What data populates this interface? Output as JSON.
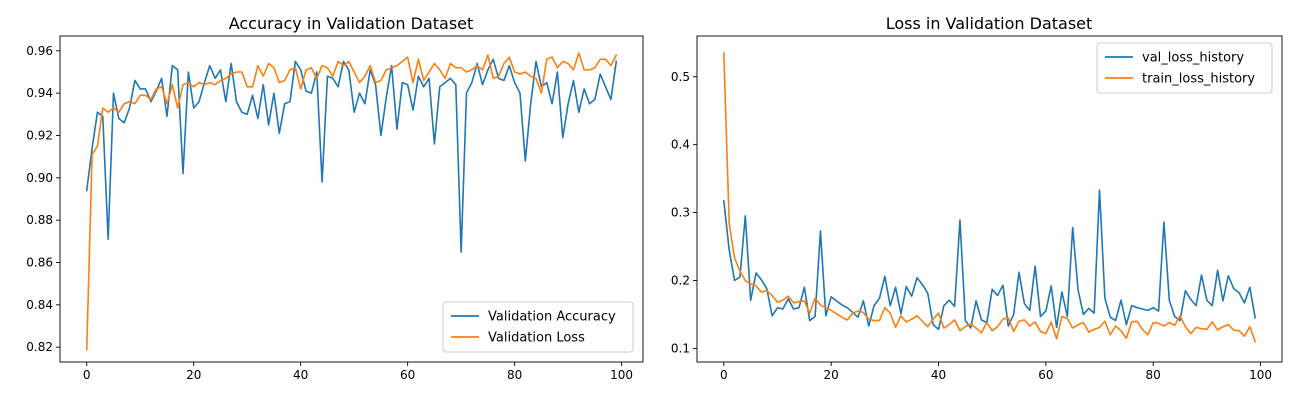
{
  "chart_data": [
    {
      "type": "line",
      "title": "Accuracy in Validation Dataset",
      "xlabel": "",
      "ylabel": "",
      "xlim": [
        -5,
        104
      ],
      "ylim": [
        0.813,
        0.967
      ],
      "xticks": [
        0,
        20,
        40,
        60,
        80,
        100
      ],
      "yticks": [
        0.82,
        0.84,
        0.86,
        0.88,
        0.9,
        0.92,
        0.94,
        0.96
      ],
      "ytick_labels": [
        "0.82",
        "0.84",
        "0.86",
        "0.88",
        "0.90",
        "0.92",
        "0.94",
        "0.96"
      ],
      "grid": false,
      "legend_position": "lower-right",
      "series": [
        {
          "name": "Validation Accuracy",
          "color": "#1f77b4",
          "values": [
            0.894,
            0.914,
            0.931,
            0.929,
            0.871,
            0.94,
            0.928,
            0.926,
            0.933,
            0.946,
            0.942,
            0.942,
            0.936,
            0.941,
            0.947,
            0.929,
            0.953,
            0.951,
            0.902,
            0.95,
            0.933,
            0.936,
            0.945,
            0.953,
            0.947,
            0.951,
            0.936,
            0.954,
            0.936,
            0.931,
            0.93,
            0.939,
            0.928,
            0.944,
            0.925,
            0.94,
            0.921,
            0.935,
            0.936,
            0.955,
            0.951,
            0.941,
            0.94,
            0.95,
            0.898,
            0.948,
            0.947,
            0.943,
            0.955,
            0.951,
            0.931,
            0.94,
            0.935,
            0.951,
            0.944,
            0.92,
            0.938,
            0.953,
            0.923,
            0.945,
            0.944,
            0.932,
            0.948,
            0.943,
            0.947,
            0.916,
            0.943,
            0.945,
            0.947,
            0.944,
            0.865,
            0.94,
            0.945,
            0.954,
            0.944,
            0.951,
            0.956,
            0.947,
            0.946,
            0.953,
            0.945,
            0.94,
            0.908,
            0.935,
            0.955,
            0.943,
            0.945,
            0.935,
            0.95,
            0.919,
            0.935,
            0.946,
            0.931,
            0.942,
            0.935,
            0.937,
            0.949,
            0.943,
            0.937,
            0.955
          ]
        },
        {
          "name": "Validation Loss",
          "color": "#ff7f0e",
          "values": [
            0.819,
            0.911,
            0.915,
            0.933,
            0.931,
            0.933,
            0.931,
            0.935,
            0.936,
            0.935,
            0.939,
            0.939,
            0.937,
            0.942,
            0.943,
            0.935,
            0.944,
            0.933,
            0.944,
            0.945,
            0.943,
            0.945,
            0.944,
            0.945,
            0.944,
            0.946,
            0.947,
            0.949,
            0.95,
            0.95,
            0.943,
            0.943,
            0.953,
            0.948,
            0.954,
            0.952,
            0.945,
            0.946,
            0.951,
            0.952,
            0.942,
            0.951,
            0.952,
            0.947,
            0.953,
            0.952,
            0.948,
            0.955,
            0.953,
            0.955,
            0.95,
            0.945,
            0.948,
            0.953,
            0.945,
            0.946,
            0.951,
            0.952,
            0.953,
            0.955,
            0.957,
            0.945,
            0.956,
            0.946,
            0.95,
            0.954,
            0.951,
            0.947,
            0.954,
            0.952,
            0.952,
            0.95,
            0.951,
            0.953,
            0.951,
            0.958,
            0.947,
            0.948,
            0.954,
            0.957,
            0.95,
            0.949,
            0.95,
            0.948,
            0.947,
            0.94,
            0.956,
            0.957,
            0.952,
            0.955,
            0.954,
            0.951,
            0.959,
            0.951,
            0.951,
            0.952,
            0.956,
            0.956,
            0.953,
            0.958
          ]
        }
      ]
    },
    {
      "type": "line",
      "title": "Loss in Validation Dataset",
      "xlabel": "",
      "ylabel": "",
      "xlim": [
        -5,
        104
      ],
      "ylim": [
        0.08,
        0.56
      ],
      "xticks": [
        0,
        20,
        40,
        60,
        80,
        100
      ],
      "yticks": [
        0.1,
        0.2,
        0.3,
        0.4,
        0.5
      ],
      "ytick_labels": [
        "0.1",
        "0.2",
        "0.3",
        "0.4",
        "0.5"
      ],
      "grid": false,
      "legend_position": "top-right",
      "series": [
        {
          "name": "val_loss_history",
          "color": "#1f77b4",
          "values": [
            0.317,
            0.245,
            0.2,
            0.205,
            0.295,
            0.171,
            0.211,
            0.201,
            0.188,
            0.148,
            0.16,
            0.158,
            0.173,
            0.158,
            0.16,
            0.19,
            0.141,
            0.147,
            0.273,
            0.148,
            0.176,
            0.17,
            0.164,
            0.16,
            0.153,
            0.146,
            0.17,
            0.133,
            0.163,
            0.174,
            0.206,
            0.163,
            0.19,
            0.151,
            0.191,
            0.177,
            0.204,
            0.194,
            0.181,
            0.135,
            0.128,
            0.163,
            0.171,
            0.162,
            0.289,
            0.141,
            0.13,
            0.17,
            0.142,
            0.138,
            0.187,
            0.178,
            0.193,
            0.133,
            0.15,
            0.212,
            0.166,
            0.156,
            0.221,
            0.147,
            0.155,
            0.192,
            0.131,
            0.183,
            0.147,
            0.278,
            0.186,
            0.15,
            0.159,
            0.152,
            0.333,
            0.174,
            0.146,
            0.141,
            0.171,
            0.135,
            0.163,
            0.16,
            0.158,
            0.156,
            0.16,
            0.155,
            0.286,
            0.171,
            0.147,
            0.141,
            0.185,
            0.172,
            0.163,
            0.208,
            0.171,
            0.163,
            0.215,
            0.17,
            0.207,
            0.188,
            0.182,
            0.167,
            0.19,
            0.145
          ]
        },
        {
          "name": "train_loss_history",
          "color": "#ff7f0e",
          "values": [
            0.535,
            0.284,
            0.233,
            0.214,
            0.2,
            0.195,
            0.192,
            0.183,
            0.185,
            0.178,
            0.168,
            0.171,
            0.177,
            0.167,
            0.169,
            0.17,
            0.152,
            0.174,
            0.164,
            0.16,
            0.156,
            0.151,
            0.146,
            0.142,
            0.152,
            0.155,
            0.153,
            0.143,
            0.141,
            0.141,
            0.16,
            0.152,
            0.131,
            0.148,
            0.139,
            0.143,
            0.148,
            0.14,
            0.132,
            0.143,
            0.152,
            0.13,
            0.135,
            0.142,
            0.126,
            0.132,
            0.136,
            0.13,
            0.123,
            0.138,
            0.126,
            0.132,
            0.143,
            0.145,
            0.125,
            0.14,
            0.142,
            0.133,
            0.139,
            0.125,
            0.122,
            0.139,
            0.114,
            0.147,
            0.144,
            0.13,
            0.135,
            0.138,
            0.124,
            0.128,
            0.131,
            0.14,
            0.12,
            0.133,
            0.126,
            0.115,
            0.139,
            0.14,
            0.128,
            0.12,
            0.138,
            0.137,
            0.133,
            0.138,
            0.134,
            0.148,
            0.132,
            0.122,
            0.131,
            0.129,
            0.128,
            0.139,
            0.127,
            0.132,
            0.135,
            0.127,
            0.126,
            0.118,
            0.132,
            0.11
          ]
        }
      ]
    }
  ]
}
